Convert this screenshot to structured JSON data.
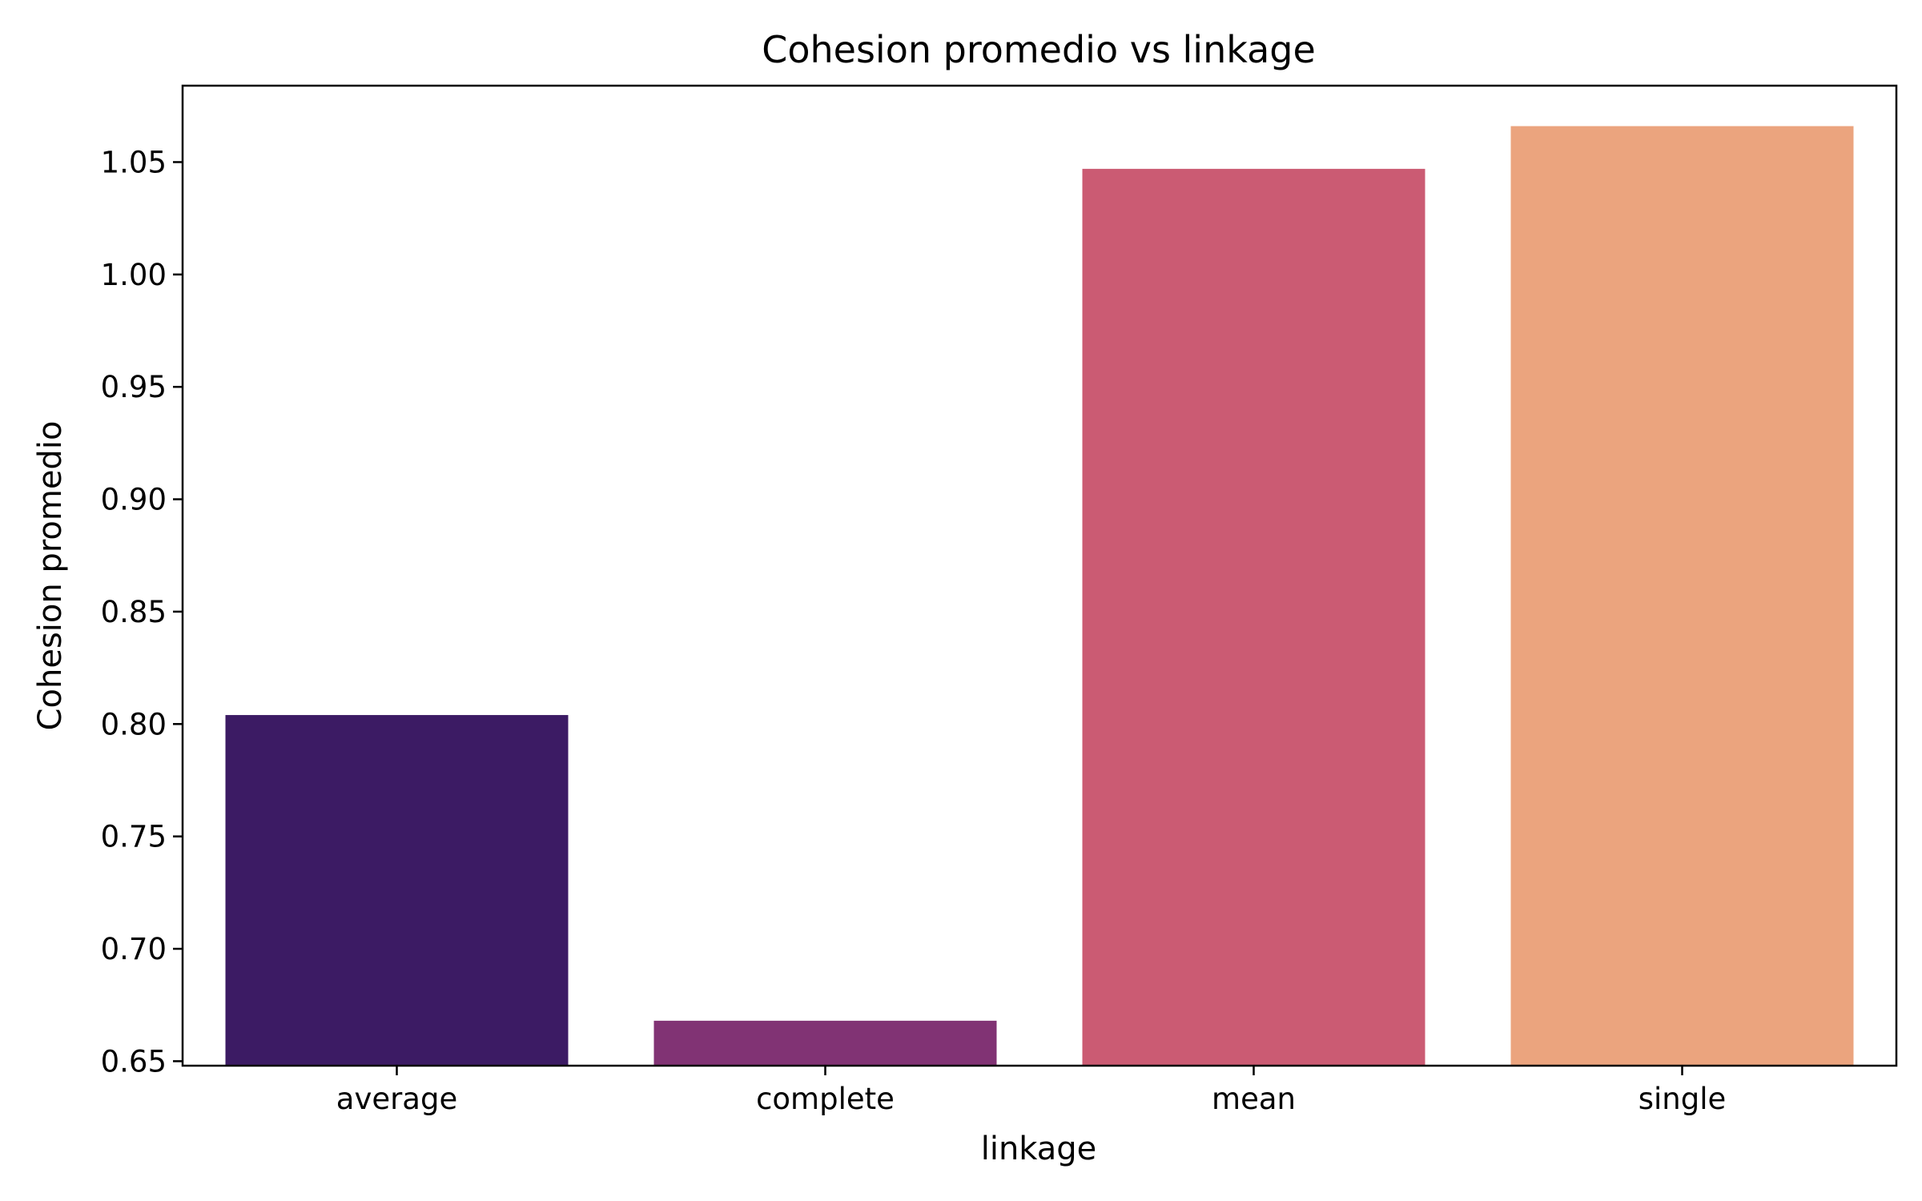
{
  "chart_data": {
    "type": "bar",
    "title": "Cohesion promedio vs linkage",
    "xlabel": "linkage",
    "ylabel": "Cohesion promedio",
    "categories": [
      "average",
      "complete",
      "mean",
      "single"
    ],
    "values": [
      0.804,
      0.668,
      1.047,
      1.066
    ],
    "colors": [
      "#3c1b64",
      "#813374",
      "#cb5b73",
      "#eba47e"
    ],
    "ylim": [
      0.648,
      1.084
    ],
    "yticks": [
      0.65,
      0.7,
      0.75,
      0.8,
      0.85,
      0.9,
      0.95,
      1.0,
      1.05
    ],
    "ytick_labels": [
      "0.65",
      "0.70",
      "0.75",
      "0.80",
      "0.85",
      "0.90",
      "0.95",
      "1.00",
      "1.05"
    ],
    "grid": false,
    "legend": "none"
  }
}
